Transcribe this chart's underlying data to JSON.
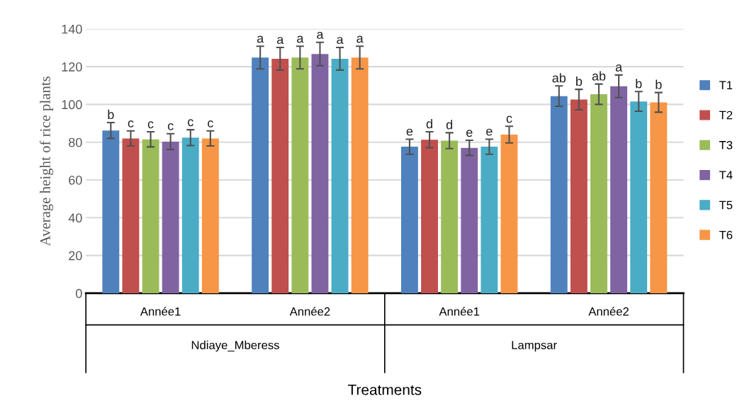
{
  "chart_data": {
    "type": "bar",
    "xlabel": "Treatments",
    "ylabel": "Average height of rice plants",
    "categories": [
      "Année1",
      "Année2",
      "Année1",
      "Année2"
    ],
    "annotations": [
      "Ndiaye_Mberess",
      "Lampsar"
    ],
    "series": [
      {
        "name": "T1",
        "color": "#4f81bd",
        "values": [
          86.2,
          124.8,
          77.6,
          104.4
        ],
        "errors": [
          4.2,
          6,
          4,
          5.4
        ],
        "value_labels": [
          "b",
          "a",
          "e",
          "ab"
        ]
      },
      {
        "name": "T2",
        "color": "#c0504d",
        "values": [
          82,
          124.2,
          81.3,
          102.6
        ],
        "errors": [
          4,
          6,
          4.2,
          5.4
        ],
        "value_labels": [
          "c",
          "a",
          "d",
          "b"
        ]
      },
      {
        "name": "T3",
        "color": "#9bbb59",
        "values": [
          81.5,
          124.8,
          80.8,
          105.4
        ],
        "errors": [
          4,
          6,
          4.2,
          5.4
        ],
        "value_labels": [
          "c",
          "a",
          "d",
          "ab"
        ]
      },
      {
        "name": "T4",
        "color": "#8064a2",
        "values": [
          80.3,
          126.7,
          77,
          109.6
        ],
        "errors": [
          4.2,
          6.2,
          4,
          6
        ],
        "value_labels": [
          "c",
          "a",
          "e",
          "a"
        ]
      },
      {
        "name": "T5",
        "color": "#4bacc6",
        "values": [
          82.4,
          124.2,
          77.6,
          101.6
        ],
        "errors": [
          4.2,
          6,
          4,
          5.2
        ],
        "value_labels": [
          "c",
          "a",
          "e",
          "b"
        ]
      },
      {
        "name": "T6",
        "color": "#f79646",
        "values": [
          82,
          124.8,
          84,
          101.1
        ],
        "errors": [
          4,
          6,
          4.4,
          5.2
        ],
        "value_labels": [
          "c",
          "a",
          "c",
          "b"
        ]
      }
    ],
    "ylim": [
      0,
      140
    ],
    "yticks": [
      0,
      20,
      40,
      60,
      80,
      100,
      120,
      140
    ],
    "grid": "y",
    "legend": "right"
  }
}
